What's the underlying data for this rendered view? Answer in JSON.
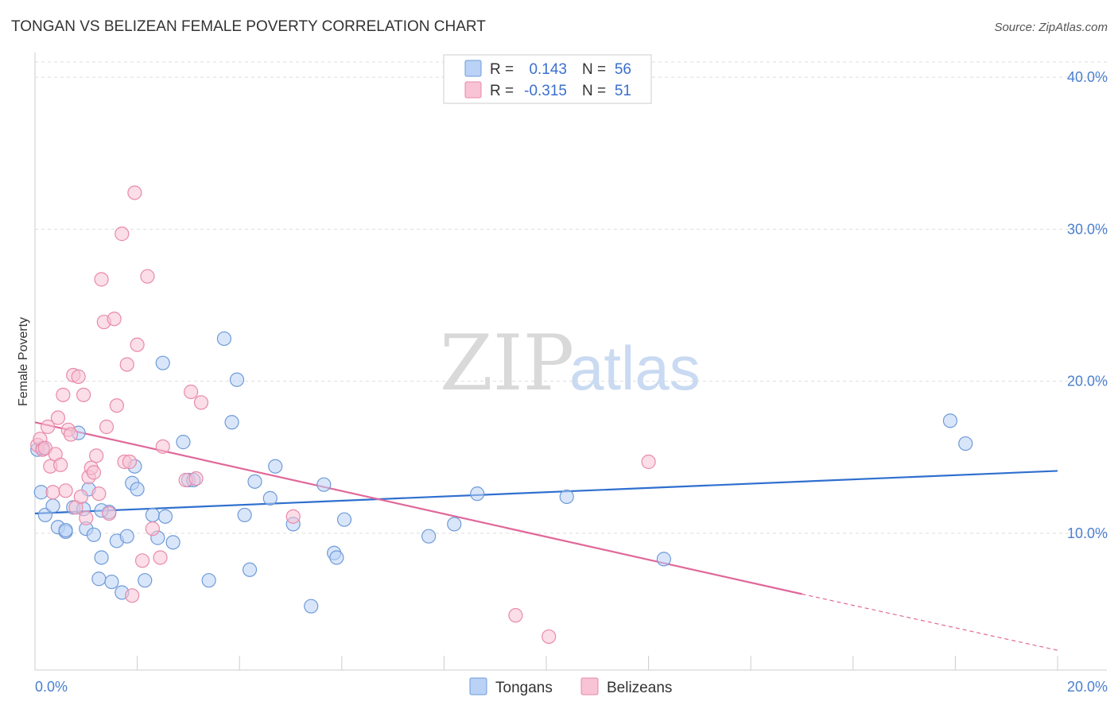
{
  "title": "TONGAN VS BELIZEAN FEMALE POVERTY CORRELATION CHART",
  "source": "Source: ZipAtlas.com",
  "watermark": {
    "zip": "ZIP",
    "atlas": "atlas"
  },
  "colors": {
    "tongans_fill": "#b9d2f5",
    "tongans_stroke": "#6f9bd8",
    "tongans_line": "#2f6fcf",
    "belizeans_fill": "#f8c3d4",
    "belizeans_stroke": "#e98aaa",
    "belizeans_line": "#e0689a",
    "tick_text": "#4a7fcf",
    "grid": "#dddddd"
  },
  "legend": {
    "rows": [
      {
        "r_label": "R =",
        "r_value": "0.143",
        "n_label": "N =",
        "n_value": "56"
      },
      {
        "r_label": "R =",
        "r_value": "-0.315",
        "n_label": "N =",
        "n_value": "51"
      }
    ]
  },
  "bottom_legend": [
    "Tongans",
    "Belizeans"
  ],
  "chart_data": {
    "type": "scatter",
    "title": "TONGAN VS BELIZEAN FEMALE POVERTY CORRELATION CHART",
    "xlabel": "",
    "ylabel": "Female Poverty",
    "xlim": [
      0,
      20
    ],
    "ylim": [
      1,
      41
    ],
    "x_tick_labels": [
      "0.0%",
      "20.0%"
    ],
    "y_ticks": [
      10,
      20,
      30,
      40
    ],
    "y_tick_labels": [
      "10.0%",
      "20.0%",
      "30.0%",
      "40.0%"
    ],
    "grid": "horizontal dashed",
    "legend_placement": "top-center",
    "series": [
      {
        "name": "Tongans",
        "r": 0.143,
        "n": 56,
        "trend": {
          "x": [
            0,
            20
          ],
          "y": [
            11.3,
            14.1
          ]
        },
        "points": [
          [
            0.05,
            15.5
          ],
          [
            0.12,
            12.7
          ],
          [
            0.2,
            11.2
          ],
          [
            0.35,
            11.8
          ],
          [
            0.45,
            10.4
          ],
          [
            0.6,
            10.1
          ],
          [
            0.75,
            11.7
          ],
          [
            0.85,
            16.6
          ],
          [
            0.95,
            11.6
          ],
          [
            1.0,
            10.3
          ],
          [
            1.05,
            12.9
          ],
          [
            1.15,
            9.9
          ],
          [
            1.25,
            7.0
          ],
          [
            1.3,
            8.4
          ],
          [
            1.45,
            11.4
          ],
          [
            1.5,
            6.8
          ],
          [
            1.6,
            9.5
          ],
          [
            1.7,
            6.1
          ],
          [
            1.8,
            9.8
          ],
          [
            1.9,
            13.3
          ],
          [
            1.95,
            14.4
          ],
          [
            2.0,
            12.9
          ],
          [
            2.15,
            6.9
          ],
          [
            2.3,
            11.2
          ],
          [
            2.4,
            9.7
          ],
          [
            2.5,
            21.2
          ],
          [
            2.55,
            11.1
          ],
          [
            2.7,
            9.4
          ],
          [
            2.9,
            16.0
          ],
          [
            3.0,
            13.5
          ],
          [
            3.1,
            13.5
          ],
          [
            3.4,
            6.9
          ],
          [
            3.7,
            22.8
          ],
          [
            3.85,
            17.3
          ],
          [
            3.95,
            20.1
          ],
          [
            4.1,
            11.2
          ],
          [
            4.2,
            7.6
          ],
          [
            4.3,
            13.4
          ],
          [
            4.6,
            12.3
          ],
          [
            4.7,
            14.4
          ],
          [
            5.05,
            10.6
          ],
          [
            5.4,
            5.2
          ],
          [
            5.65,
            13.2
          ],
          [
            5.85,
            8.7
          ],
          [
            5.9,
            8.4
          ],
          [
            6.05,
            10.9
          ],
          [
            7.7,
            9.8
          ],
          [
            8.2,
            10.6
          ],
          [
            8.65,
            12.6
          ],
          [
            10.4,
            12.4
          ],
          [
            12.3,
            8.3
          ],
          [
            17.9,
            17.4
          ],
          [
            18.2,
            15.9
          ],
          [
            0.15,
            15.6
          ],
          [
            0.6,
            10.2
          ],
          [
            1.3,
            11.5
          ]
        ]
      },
      {
        "name": "Belizeans",
        "r": -0.315,
        "n": 51,
        "trend": {
          "x": [
            0,
            15
          ],
          "y": [
            17.3,
            6.0
          ]
        },
        "trend_dashed": {
          "x": [
            15,
            20
          ],
          "y": [
            6.0,
            2.3
          ]
        },
        "points": [
          [
            0.05,
            15.8
          ],
          [
            0.1,
            16.2
          ],
          [
            0.15,
            15.5
          ],
          [
            0.2,
            15.6
          ],
          [
            0.25,
            17.0
          ],
          [
            0.3,
            14.4
          ],
          [
            0.35,
            12.7
          ],
          [
            0.4,
            15.2
          ],
          [
            0.45,
            17.6
          ],
          [
            0.5,
            14.5
          ],
          [
            0.55,
            19.1
          ],
          [
            0.6,
            12.8
          ],
          [
            0.65,
            16.8
          ],
          [
            0.7,
            16.5
          ],
          [
            0.75,
            20.4
          ],
          [
            0.8,
            11.7
          ],
          [
            0.85,
            20.3
          ],
          [
            0.9,
            12.4
          ],
          [
            0.95,
            19.1
          ],
          [
            1.0,
            11.0
          ],
          [
            1.05,
            13.7
          ],
          [
            1.1,
            14.3
          ],
          [
            1.15,
            14.0
          ],
          [
            1.2,
            15.1
          ],
          [
            1.25,
            12.6
          ],
          [
            1.3,
            26.7
          ],
          [
            1.35,
            23.9
          ],
          [
            1.4,
            17.0
          ],
          [
            1.45,
            11.3
          ],
          [
            1.55,
            24.1
          ],
          [
            1.6,
            18.4
          ],
          [
            1.7,
            29.7
          ],
          [
            1.75,
            14.7
          ],
          [
            1.8,
            21.1
          ],
          [
            1.85,
            14.7
          ],
          [
            1.9,
            5.9
          ],
          [
            1.95,
            32.4
          ],
          [
            2.0,
            22.4
          ],
          [
            2.1,
            8.2
          ],
          [
            2.2,
            26.9
          ],
          [
            2.3,
            10.3
          ],
          [
            2.45,
            8.4
          ],
          [
            2.5,
            15.7
          ],
          [
            2.95,
            13.5
          ],
          [
            3.05,
            19.3
          ],
          [
            3.15,
            13.6
          ],
          [
            3.25,
            18.6
          ],
          [
            5.05,
            11.1
          ],
          [
            9.4,
            4.6
          ],
          [
            10.05,
            3.2
          ],
          [
            12.0,
            14.7
          ]
        ]
      }
    ]
  }
}
